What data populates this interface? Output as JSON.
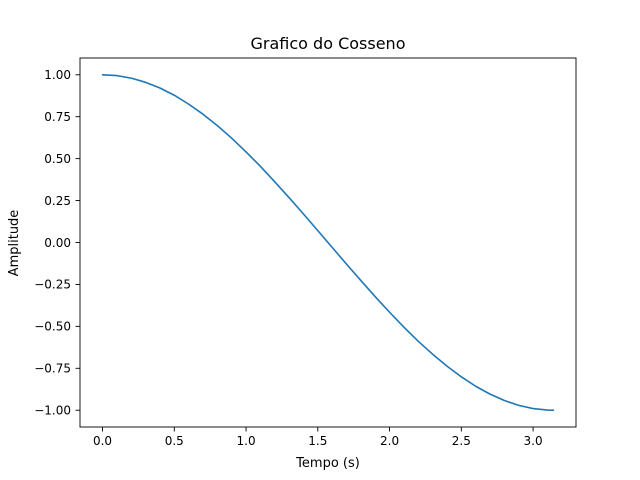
{
  "chart_data": {
    "type": "line",
    "title": "Grafico do Cosseno",
    "xlabel": "Tempo (s)",
    "ylabel": "Amplitude",
    "xlim": [
      -0.157,
      3.299
    ],
    "ylim": [
      -1.1,
      1.1
    ],
    "xticks": [
      0.0,
      0.5,
      1.0,
      1.5,
      2.0,
      2.5,
      3.0
    ],
    "xtick_labels": [
      "0.0",
      "0.5",
      "1.0",
      "1.5",
      "2.0",
      "2.5",
      "3.0"
    ],
    "yticks": [
      1.0,
      0.75,
      0.5,
      0.25,
      0.0,
      -0.25,
      -0.5,
      -0.75,
      -1.0
    ],
    "ytick_labels": [
      "1.00",
      "0.75",
      "0.50",
      "0.25",
      "0.00",
      "−0.25",
      "−0.50",
      "−0.75",
      "−1.00"
    ],
    "grid": false,
    "series": [
      {
        "color": "#1f77b4",
        "x": [
          0.0,
          0.1,
          0.2,
          0.3,
          0.4,
          0.5,
          0.6,
          0.7,
          0.8,
          0.9,
          1.0,
          1.1,
          1.2,
          1.3,
          1.4,
          1.5,
          1.6,
          1.7,
          1.8,
          1.9,
          2.0,
          2.1,
          2.2,
          2.3,
          2.4,
          2.5,
          2.6,
          2.7,
          2.8,
          2.9,
          3.0,
          3.1,
          3.1416
        ],
        "y": [
          1.0,
          0.995,
          0.98,
          0.955,
          0.921,
          0.878,
          0.825,
          0.765,
          0.697,
          0.622,
          0.54,
          0.454,
          0.362,
          0.267,
          0.17,
          0.071,
          -0.029,
          -0.129,
          -0.227,
          -0.323,
          -0.416,
          -0.505,
          -0.589,
          -0.666,
          -0.737,
          -0.801,
          -0.857,
          -0.904,
          -0.942,
          -0.971,
          -0.99,
          -0.999,
          -1.0
        ]
      }
    ]
  }
}
